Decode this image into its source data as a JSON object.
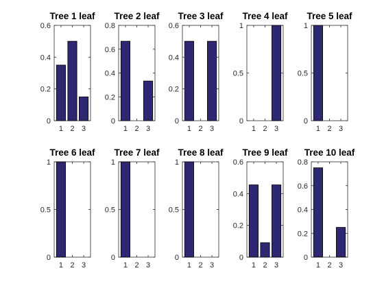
{
  "style": {
    "bar_color": "#2e2872",
    "axis_color": "#262626",
    "background": "#ffffff"
  },
  "chart_data": [
    {
      "type": "bar",
      "title": "Tree 1 leaf",
      "categories": [
        "1",
        "2",
        "3"
      ],
      "values": [
        0.35,
        0.5,
        0.15
      ],
      "ylim": [
        0,
        0.6
      ],
      "yticks": [
        0,
        0.2,
        0.4,
        0.6
      ],
      "ytick_labels": [
        "0",
        "0.2",
        "0.4",
        "0.6"
      ],
      "grid": false
    },
    {
      "type": "bar",
      "title": "Tree 2 leaf",
      "categories": [
        "1",
        "2",
        "3"
      ],
      "values": [
        0.667,
        0,
        0.333
      ],
      "ylim": [
        0,
        0.8
      ],
      "yticks": [
        0,
        0.2,
        0.4,
        0.6,
        0.8
      ],
      "ytick_labels": [
        "0",
        "0.2",
        "0.4",
        "0.6",
        "0.8"
      ],
      "grid": false
    },
    {
      "type": "bar",
      "title": "Tree 3 leaf",
      "categories": [
        "1",
        "2",
        "3"
      ],
      "values": [
        0.5,
        0,
        0.5
      ],
      "ylim": [
        0,
        0.6
      ],
      "yticks": [
        0,
        0.2,
        0.4,
        0.6
      ],
      "ytick_labels": [
        "0",
        "0.2",
        "0.4",
        "0.6"
      ],
      "grid": false
    },
    {
      "type": "bar",
      "title": "Tree 4 leaf",
      "categories": [
        "1",
        "2",
        "3"
      ],
      "values": [
        0,
        0,
        1
      ],
      "ylim": [
        0,
        1
      ],
      "yticks": [
        0,
        0.5,
        1
      ],
      "ytick_labels": [
        "0",
        "0.5",
        "1"
      ],
      "grid": false
    },
    {
      "type": "bar",
      "title": "Tree 5 leaf",
      "categories": [
        "1",
        "2",
        "3"
      ],
      "values": [
        1,
        0,
        0
      ],
      "ylim": [
        0,
        1
      ],
      "yticks": [
        0,
        0.5,
        1
      ],
      "ytick_labels": [
        "0",
        "0.5",
        "1"
      ],
      "grid": false
    },
    {
      "type": "bar",
      "title": "Tree 6 leaf",
      "categories": [
        "1",
        "2",
        "3"
      ],
      "values": [
        1,
        0,
        0
      ],
      "ylim": [
        0,
        1
      ],
      "yticks": [
        0,
        0.5,
        1
      ],
      "ytick_labels": [
        "0",
        "0.5",
        "1"
      ],
      "grid": false
    },
    {
      "type": "bar",
      "title": "Tree 7 leaf",
      "categories": [
        "1",
        "2",
        "3"
      ],
      "values": [
        1,
        0,
        0
      ],
      "ylim": [
        0,
        1
      ],
      "yticks": [
        0,
        0.5,
        1
      ],
      "ytick_labels": [
        "0",
        "0.5",
        "1"
      ],
      "grid": false
    },
    {
      "type": "bar",
      "title": "Tree 8 leaf",
      "categories": [
        "1",
        "2",
        "3"
      ],
      "values": [
        1,
        0,
        0
      ],
      "ylim": [
        0,
        1
      ],
      "yticks": [
        0,
        0.5,
        1
      ],
      "ytick_labels": [
        "0",
        "0.5",
        "1"
      ],
      "grid": false
    },
    {
      "type": "bar",
      "title": "Tree 9 leaf",
      "categories": [
        "1",
        "2",
        "3"
      ],
      "values": [
        0.455,
        0.091,
        0.455
      ],
      "ylim": [
        0,
        0.6
      ],
      "yticks": [
        0,
        0.2,
        0.4,
        0.6
      ],
      "ytick_labels": [
        "0",
        "0.2",
        "0.4",
        "0.6"
      ],
      "grid": false
    },
    {
      "type": "bar",
      "title": "Tree 10 leaf",
      "categories": [
        "1",
        "2",
        "3"
      ],
      "values": [
        0.75,
        0,
        0.25
      ],
      "ylim": [
        0,
        0.8
      ],
      "yticks": [
        0,
        0.2,
        0.4,
        0.6,
        0.8
      ],
      "ytick_labels": [
        "0",
        "0.2",
        "0.4",
        "0.6",
        "0.8"
      ],
      "grid": false
    }
  ]
}
